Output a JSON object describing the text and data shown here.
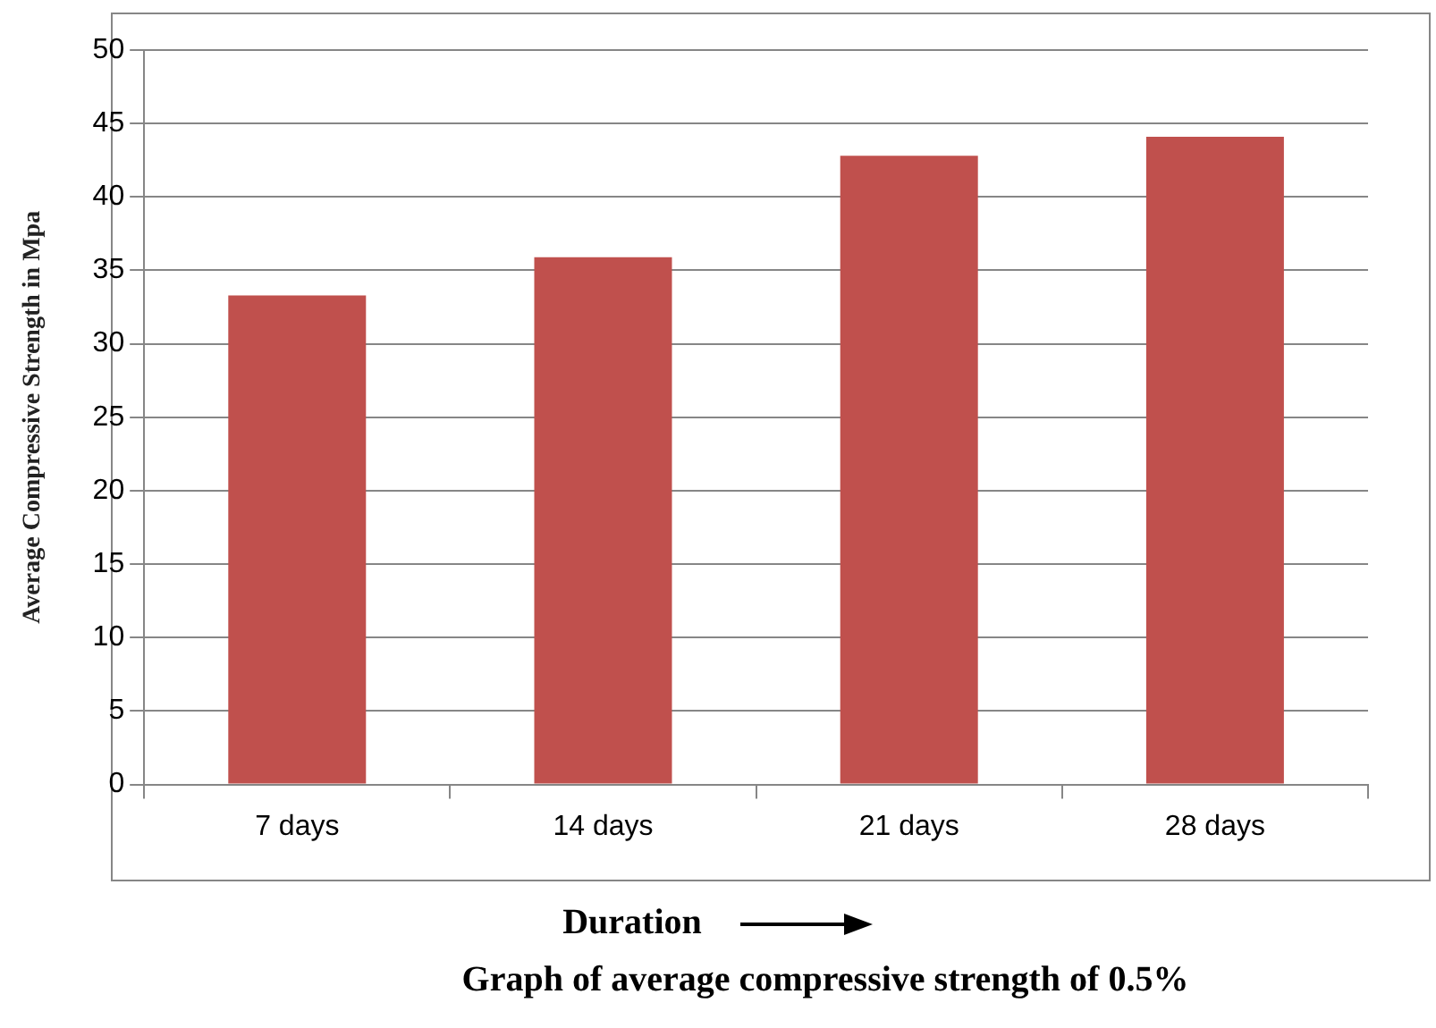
{
  "chart_data": {
    "type": "bar",
    "xlabel": "Duration",
    "ylabel": "Average Compressive Strength in Mpa",
    "categories": [
      "7 days",
      "14 days",
      "21 days",
      "28 days"
    ],
    "values": [
      33.3,
      35.9,
      42.8,
      44.1
    ],
    "color": "#c0504d",
    "ylim": [
      0,
      50
    ],
    "yticks": [
      0,
      5,
      10,
      15,
      20,
      25,
      30,
      35,
      40,
      45,
      50
    ],
    "grid": "y",
    "annotations": [
      "Graph of average compressive strength of 0.5%"
    ]
  }
}
